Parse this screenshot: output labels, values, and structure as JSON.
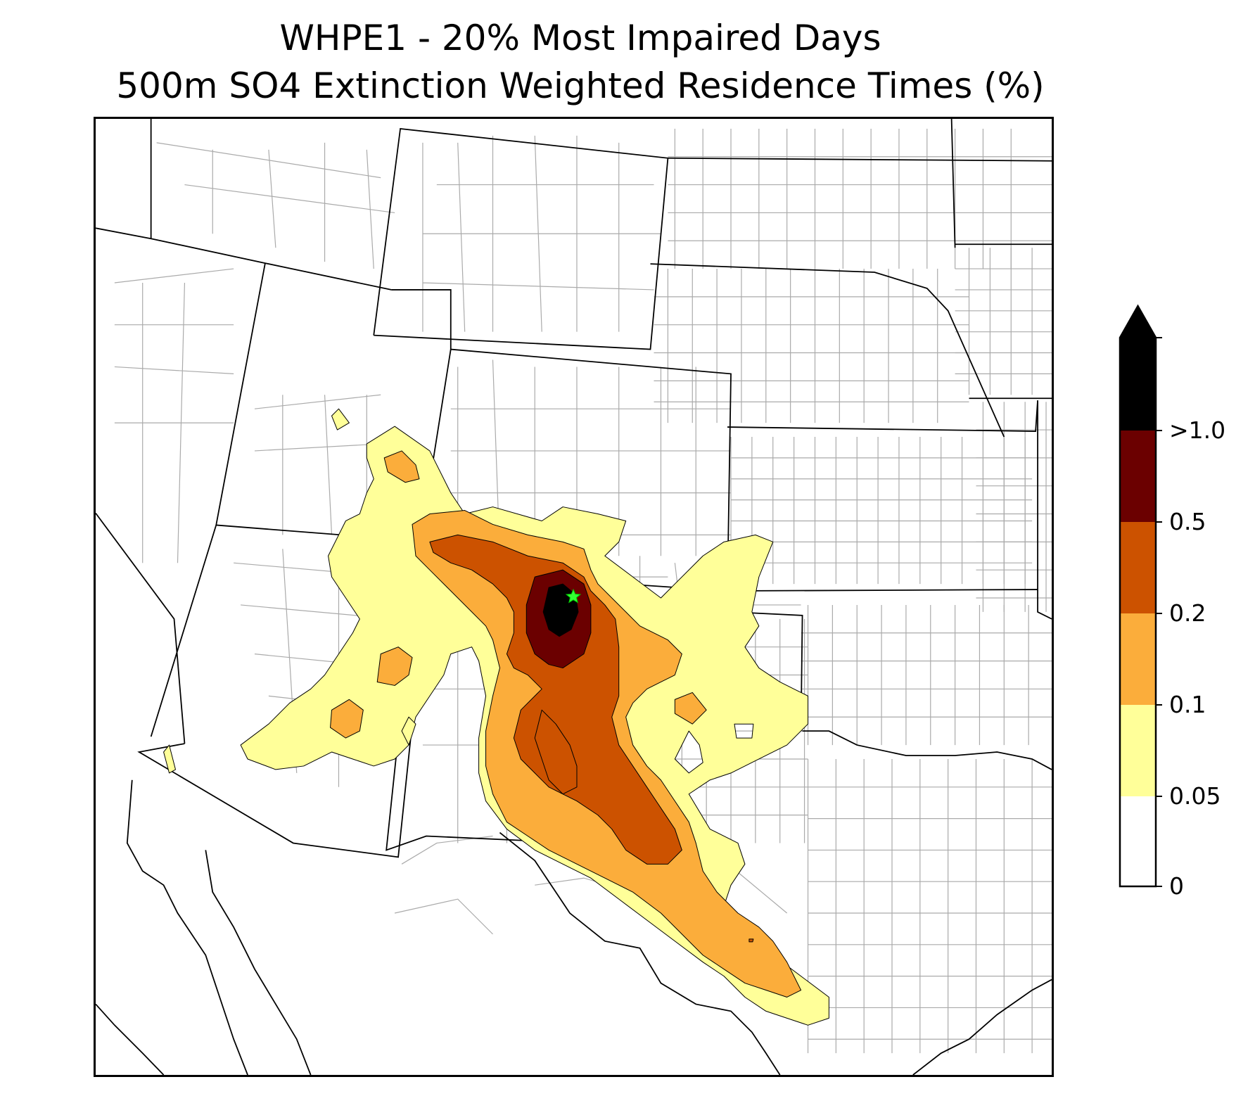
{
  "title_line1": "WHPE1 - 20% Most Impaired Days",
  "title_line2": "500m SO4 Extinction Weighted Residence Times (%)",
  "colorbar": {
    "labels": [
      "0",
      "0.05",
      "0.1",
      "0.2",
      "0.5",
      ">1.0"
    ],
    "bins": [
      {
        "range": "0-0.05",
        "color": "#ffffff"
      },
      {
        "range": "0.05-0.1",
        "color": "#ffff99"
      },
      {
        "range": "0.1-0.2",
        "color": "#fbad3b"
      },
      {
        "range": "0.2-0.5",
        "color": "#cc5200"
      },
      {
        "range": "0.5-1.0",
        "color": "#6b0000"
      },
      {
        "range": ">1.0",
        "color": "#000000"
      }
    ],
    "extend": "max"
  },
  "site_marker": {
    "symbol": "star",
    "color": "#33ff33"
  },
  "colors": {
    "state_border": "#000000",
    "county_border": "#aaaaaa",
    "contour_edge": "#000000"
  }
}
